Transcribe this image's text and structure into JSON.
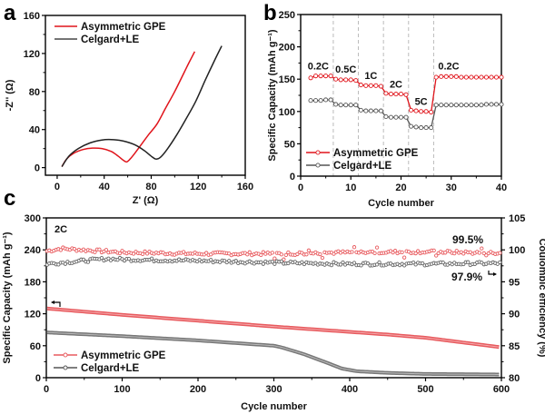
{
  "chart_data": [
    {
      "panel": "a",
      "type": "line",
      "xlabel": "Z' (Ω)",
      "ylabel": "-Z'' (Ω)",
      "xlim": [
        -10,
        160
      ],
      "ylim": [
        -8,
        160
      ],
      "xticks": [
        0,
        40,
        80,
        120,
        160
      ],
      "yticks": [
        0,
        40,
        80,
        120,
        160
      ],
      "legend_position": "top-left",
      "series": [
        {
          "name": "Asymmetric GPE",
          "color": "#e0141b",
          "x": [
            4,
            8,
            14,
            22,
            30,
            38,
            46,
            52,
            56,
            59,
            62,
            66,
            72,
            78,
            85,
            92,
            100,
            108,
            112,
            117
          ],
          "y": [
            1,
            9,
            15,
            19,
            20.5,
            20,
            17,
            12,
            8,
            6,
            9,
            15,
            25,
            35,
            46,
            62,
            80,
            100,
            110,
            122
          ]
        },
        {
          "name": "Celgard+LE",
          "color": "#222222",
          "x": [
            4,
            10,
            18,
            28,
            38,
            46,
            56,
            66,
            74,
            80,
            84,
            88,
            94,
            102,
            110,
            118,
            126,
            134,
            140
          ],
          "y": [
            1,
            12,
            20,
            26,
            29,
            29.5,
            28,
            24,
            18,
            12,
            9,
            11,
            20,
            35,
            52,
            70,
            92,
            113,
            128
          ]
        }
      ]
    },
    {
      "panel": "b",
      "type": "line",
      "xlabel": "Cycle number",
      "ylabel": "Specific Capacity (mAh g⁻¹)",
      "xlim": [
        0,
        40
      ],
      "ylim": [
        0,
        250
      ],
      "xticks": [
        0,
        10,
        20,
        30,
        40
      ],
      "yticks": [
        0,
        50,
        100,
        150,
        200,
        250
      ],
      "rate_dividers": [
        6.5,
        11.5,
        16.5,
        21.5,
        26.5
      ],
      "rate_labels": [
        {
          "text": "0.2C",
          "x": 3.5,
          "y": 165
        },
        {
          "text": "0.5C",
          "x": 9,
          "y": 160
        },
        {
          "text": "1C",
          "x": 14,
          "y": 150
        },
        {
          "text": "2C",
          "x": 19,
          "y": 137
        },
        {
          "text": "5C",
          "x": 24,
          "y": 110
        },
        {
          "text": "0.2C",
          "x": 29.5,
          "y": 165
        }
      ],
      "legend_position": "bottom-left",
      "series": [
        {
          "name": "Asymmetric GPE",
          "color": "#e0141b",
          "x": [
            2,
            3,
            4,
            5,
            6,
            7,
            8,
            9,
            10,
            11,
            12,
            13,
            14,
            15,
            16,
            17,
            18,
            19,
            20,
            21,
            22,
            23,
            24,
            25,
            26,
            27,
            28,
            29,
            30,
            31,
            32,
            33,
            34,
            35,
            36,
            37,
            38,
            39,
            40
          ],
          "y": [
            152,
            155,
            155,
            155,
            155,
            150,
            149,
            149,
            149,
            148,
            141,
            140,
            140,
            140,
            139,
            128,
            127,
            127,
            127,
            126,
            102,
            101,
            100,
            100,
            99,
            153,
            154,
            154,
            154,
            154,
            153,
            153,
            153,
            153,
            153,
            153,
            153,
            153,
            153
          ]
        },
        {
          "name": "Celgard+LE",
          "color": "#555555",
          "x": [
            2,
            3,
            4,
            5,
            6,
            7,
            8,
            9,
            10,
            11,
            12,
            13,
            14,
            15,
            16,
            17,
            18,
            19,
            20,
            21,
            22,
            23,
            24,
            25,
            26,
            27,
            28,
            29,
            30,
            31,
            32,
            33,
            34,
            35,
            36,
            37,
            38,
            39,
            40
          ],
          "y": [
            117,
            117,
            117,
            118,
            118,
            111,
            110,
            110,
            110,
            110,
            102,
            101,
            101,
            101,
            101,
            92,
            91,
            91,
            91,
            91,
            77,
            76,
            75,
            75,
            75,
            110,
            110,
            110,
            110,
            110,
            110,
            110,
            110,
            110,
            110,
            111,
            111,
            111,
            111
          ]
        }
      ]
    },
    {
      "panel": "c",
      "type": "scatter",
      "xlabel": "Cycle number",
      "ylabel": "Specific Capacity (mAh g⁻¹)",
      "y2label": "Coulombic efficiency (%)",
      "xlim": [
        0,
        600
      ],
      "ylim": [
        0,
        300
      ],
      "y2lim": [
        80,
        105
      ],
      "xticks": [
        0,
        100,
        200,
        300,
        400,
        500,
        600
      ],
      "yticks": [
        0,
        60,
        120,
        180,
        240,
        300
      ],
      "y2ticks": [
        80,
        85,
        90,
        95,
        100,
        105
      ],
      "rate_label": "2C",
      "annotations": [
        {
          "text": "99.5%",
          "color": "#e0141b"
        },
        {
          "text": "97.9%",
          "color": "#333333"
        }
      ],
      "legend_position": "bottom-left",
      "series": [
        {
          "name": "Asymmetric GPE capacity",
          "axis": "left",
          "color": "#e85a5e",
          "x": [
            0,
            100,
            200,
            300,
            400,
            450,
            500,
            600
          ],
          "y": [
            130,
            118,
            107,
            96,
            86,
            81,
            75,
            57
          ]
        },
        {
          "name": "Celgard+LE capacity",
          "axis": "left",
          "color": "#777777",
          "x": [
            0,
            100,
            200,
            300,
            310,
            340,
            370,
            390,
            410,
            450,
            500,
            600
          ],
          "y": [
            85,
            78,
            70,
            60,
            57,
            44,
            28,
            17,
            12,
            9,
            7,
            6
          ]
        },
        {
          "name": "Asymmetric GPE CE",
          "axis": "right",
          "color": "#e85a5e",
          "x": [
            0,
            20,
            60,
            100,
            200,
            300,
            400,
            500,
            600
          ],
          "y": [
            99.8,
            100.2,
            99.9,
            99.6,
            99.4,
            99.4,
            99.6,
            99.7,
            99.5
          ]
        },
        {
          "name": "Celgard+LE CE",
          "axis": "right",
          "color": "#666666",
          "x": [
            0,
            40,
            80,
            100,
            200,
            300,
            400,
            500,
            600
          ],
          "y": [
            97.8,
            98.2,
            98.6,
            98.5,
            98.3,
            98.0,
            97.8,
            97.8,
            97.9
          ]
        }
      ]
    }
  ],
  "legend": {
    "gpe": "Asymmetric GPE",
    "celgard": "Celgard+LE"
  },
  "panel_letters": {
    "a": "a",
    "b": "b",
    "c": "c"
  },
  "colors": {
    "red": "#e0141b",
    "red_light": "#e85a5e",
    "dark": "#222222",
    "gray": "#666666"
  }
}
